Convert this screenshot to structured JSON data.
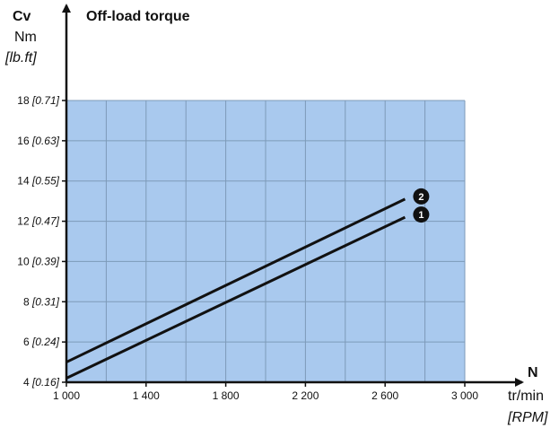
{
  "chart_data": {
    "type": "line",
    "title": "Off-load torque",
    "y_axis": {
      "symbol": "Cv",
      "unit": "Nm",
      "unit_alt": "[lb.ft]",
      "range": [
        4,
        18
      ],
      "ticks": [
        {
          "value": 4,
          "main": "4",
          "alt": "[0.16]"
        },
        {
          "value": 6,
          "main": "6",
          "alt": "[0.24]"
        },
        {
          "value": 8,
          "main": "8",
          "alt": "[0.31]"
        },
        {
          "value": 10,
          "main": "10",
          "alt": "[0.39]"
        },
        {
          "value": 12,
          "main": "12",
          "alt": "[0.47]"
        },
        {
          "value": 14,
          "main": "14",
          "alt": "[0.55]"
        },
        {
          "value": 16,
          "main": "16",
          "alt": "[0.63]"
        },
        {
          "value": 18,
          "main": "18",
          "alt": "[0.71]"
        }
      ]
    },
    "x_axis": {
      "symbol": "N",
      "unit": "tr/min",
      "unit_alt": "[RPM]",
      "range": [
        1000,
        3000
      ],
      "ticks": [
        {
          "value": 1000,
          "label": "1 000"
        },
        {
          "value": 1400,
          "label": "1 400"
        },
        {
          "value": 1800,
          "label": "1 800"
        },
        {
          "value": 2200,
          "label": "2 200"
        },
        {
          "value": 2600,
          "label": "2 600"
        },
        {
          "value": 3000,
          "label": "3 000"
        }
      ]
    },
    "grid": true,
    "grid_x_step": 200,
    "grid_y_step": 2,
    "series": [
      {
        "name": "1",
        "x": [
          1000,
          2700
        ],
        "y": [
          4.2,
          12.2
        ]
      },
      {
        "name": "2",
        "x": [
          1000,
          2700
        ],
        "y": [
          5.0,
          13.1
        ]
      }
    ],
    "colors": {
      "plot_bg": "#a9c9ee",
      "grid": "#7d9ab8",
      "line": "#111111",
      "axis": "#111111",
      "badge": "#111111"
    }
  }
}
